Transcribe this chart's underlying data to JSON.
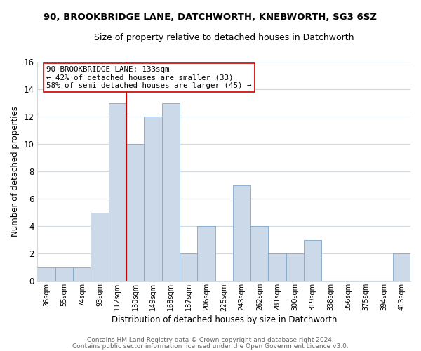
{
  "title": "90, BROOKBRIDGE LANE, DATCHWORTH, KNEBWORTH, SG3 6SZ",
  "subtitle": "Size of property relative to detached houses in Datchworth",
  "xlabel": "Distribution of detached houses by size in Datchworth",
  "ylabel": "Number of detached properties",
  "bar_color": "#ccd9e8",
  "bar_edge_color": "#7fa8cc",
  "bin_labels": [
    "36sqm",
    "55sqm",
    "74sqm",
    "93sqm",
    "112sqm",
    "130sqm",
    "149sqm",
    "168sqm",
    "187sqm",
    "206sqm",
    "225sqm",
    "243sqm",
    "262sqm",
    "281sqm",
    "300sqm",
    "319sqm",
    "338sqm",
    "356sqm",
    "375sqm",
    "394sqm",
    "413sqm"
  ],
  "bar_heights": [
    1,
    1,
    1,
    5,
    13,
    10,
    12,
    13,
    2,
    4,
    0,
    7,
    4,
    2,
    2,
    3,
    0,
    0,
    0,
    0,
    2
  ],
  "vline_index": 5,
  "vline_color": "#cc0000",
  "annotation_line1": "90 BROOKBRIDGE LANE: 133sqm",
  "annotation_line2": "← 42% of detached houses are smaller (33)",
  "annotation_line3": "58% of semi-detached houses are larger (45) →",
  "annotation_box_color": "#ffffff",
  "annotation_box_edge": "#cc0000",
  "ylim": [
    0,
    16
  ],
  "yticks": [
    0,
    2,
    4,
    6,
    8,
    10,
    12,
    14,
    16
  ],
  "footer1": "Contains HM Land Registry data © Crown copyright and database right 2024.",
  "footer2": "Contains public sector information licensed under the Open Government Licence v3.0.",
  "background_color": "#ffffff",
  "grid_color": "#d0d8e0"
}
